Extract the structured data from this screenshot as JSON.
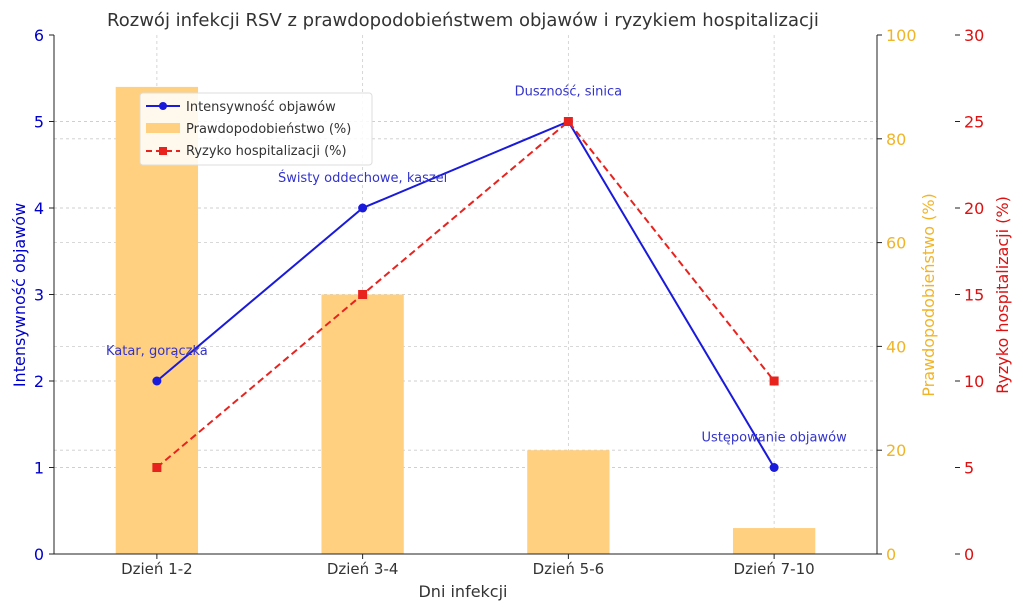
{
  "chart_data": {
    "type": "bar+line",
    "title": "Rozwój infekcji RSV z prawdopodobieństwem objawów i ryzykiem hospitalizacji",
    "xlabel": "Dni infekcji",
    "categories": [
      "Dzień 1-2",
      "Dzień 3-4",
      "Dzień 5-6",
      "Dzień 7-10"
    ],
    "axes": {
      "left": {
        "label": "Intensywność objawów",
        "ylim": [
          0,
          6
        ],
        "ticks": [
          0,
          1,
          2,
          3,
          4,
          5,
          6
        ],
        "color": "#0000cc"
      },
      "right1": {
        "label": "Prawdopodobieństwo (%)",
        "ylim": [
          0,
          100
        ],
        "ticks": [
          0,
          20,
          40,
          60,
          80,
          100
        ],
        "color": "#f0b429"
      },
      "right2": {
        "label": "Ryzyko hospitalizacji (%)",
        "ylim": [
          0,
          30
        ],
        "ticks": [
          0,
          5,
          10,
          15,
          20,
          25,
          30
        ],
        "color": "#dd1111"
      }
    },
    "grid": true,
    "legend_position": "top-left",
    "series": [
      {
        "name": "Intensywność objawów",
        "type": "line",
        "axis": "left",
        "values": [
          2,
          4,
          5,
          1
        ],
        "color": "#1a1adb",
        "marker": "circle"
      },
      {
        "name": "Prawdopodobieństwo (%)",
        "type": "bar",
        "axis": "right1",
        "values": [
          90,
          50,
          20,
          5
        ],
        "color": "#ffd080"
      },
      {
        "name": "Ryzyko hospitalizacji (%)",
        "type": "line",
        "style": "dashed",
        "axis": "right2",
        "values": [
          5,
          15,
          25,
          10
        ],
        "color": "#e8231e",
        "marker": "square"
      }
    ],
    "annotations": [
      {
        "text": "Katar, gorączka",
        "category": "Dzień 1-2"
      },
      {
        "text": "Świsty oddechowe, kaszel",
        "category": "Dzień 3-4"
      },
      {
        "text": "Duszność, sinica",
        "category": "Dzień 5-6"
      },
      {
        "text": "Ustępowanie objawów",
        "category": "Dzień 7-10"
      }
    ]
  }
}
